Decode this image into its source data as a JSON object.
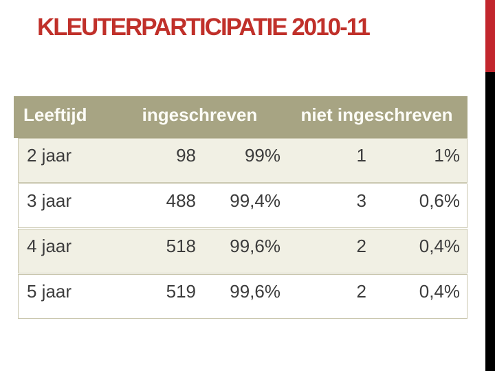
{
  "slide": {
    "title": "KLEUTERPARTICIPATIE 2010-11"
  },
  "colors": {
    "title_red": "#C0302A",
    "accent_red": "#C2262D",
    "accent_black": "#000000",
    "header_bg": "#A7A483",
    "header_text": "#FCFCF6",
    "row_alt_bg": "#F1F0E4",
    "row_bg": "#FFFFFF",
    "row_border": "#C9C6AE",
    "body_text": "#3C3C3C"
  },
  "table": {
    "columns": [
      "Leeftijd",
      "ingeschreven",
      "niet ingeschreven"
    ],
    "rows": [
      {
        "leeftijd": "2 jaar",
        "ingeschreven_aantal": "98",
        "ingeschreven_pct": "99%",
        "niet_aantal": "1",
        "niet_pct": "1%"
      },
      {
        "leeftijd": "3 jaar",
        "ingeschreven_aantal": "488",
        "ingeschreven_pct": "99,4%",
        "niet_aantal": "3",
        "niet_pct": "0,6%"
      },
      {
        "leeftijd": "4 jaar",
        "ingeschreven_aantal": "518",
        "ingeschreven_pct": "99,6%",
        "niet_aantal": "2",
        "niet_pct": "0,4%"
      },
      {
        "leeftijd": "5 jaar",
        "ingeschreven_aantal": "519",
        "ingeschreven_pct": "99,6%",
        "niet_aantal": "2",
        "niet_pct": "0,4%"
      }
    ]
  }
}
